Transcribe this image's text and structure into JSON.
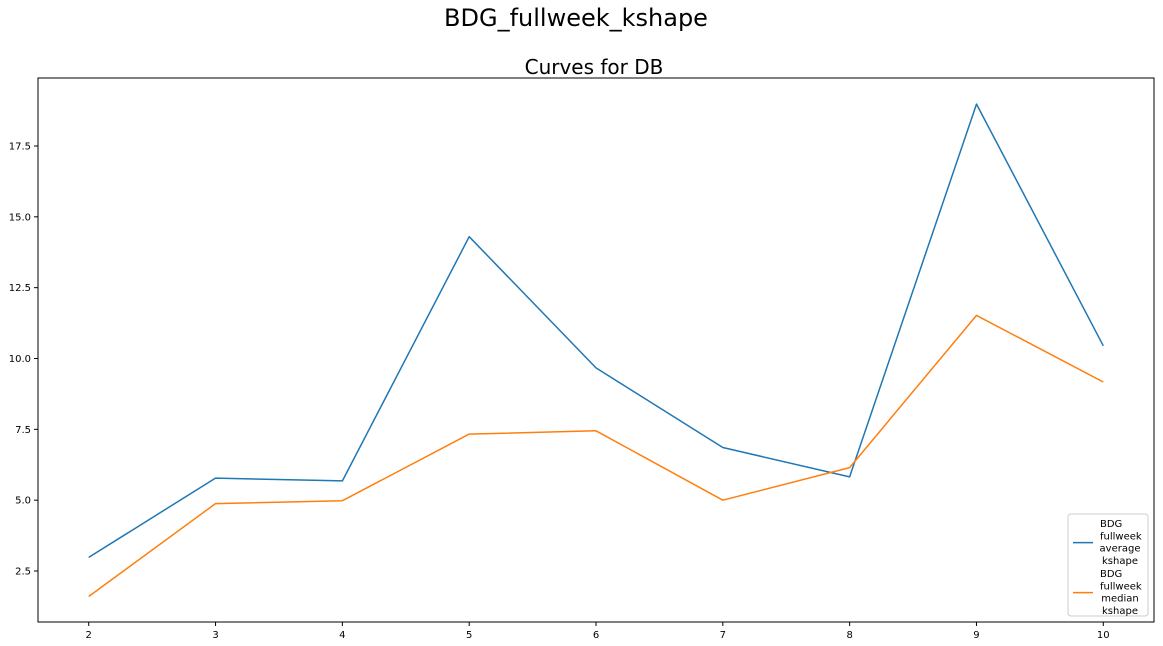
{
  "figure": {
    "suptitle": "BDG_fullweek_kshape"
  },
  "chart_data": {
    "type": "line",
    "title": "Curves for DB",
    "xlabel": "",
    "ylabel": "",
    "x": [
      2,
      3,
      4,
      5,
      6,
      7,
      8,
      9,
      10
    ],
    "xlim": [
      1.6,
      10.4
    ],
    "ylim": [
      0.7,
      19.9
    ],
    "x_ticks": [
      "2",
      "3",
      "4",
      "5",
      "6",
      "7",
      "8",
      "9",
      "10"
    ],
    "y_ticks": [
      "2.5",
      "5.0",
      "7.5",
      "10.0",
      "12.5",
      "15.0",
      "17.5"
    ],
    "y_tick_values": [
      2.5,
      5.0,
      7.5,
      10.0,
      12.5,
      15.0,
      17.5
    ],
    "grid": false,
    "legend_position": "lower-right",
    "series": [
      {
        "name": "BDG\nfullweek\n average\n kshape",
        "color": "#1f77b4",
        "values": [
          2.98,
          5.78,
          5.68,
          14.3,
          9.67,
          6.86,
          5.82,
          18.98,
          10.45
        ]
      },
      {
        "name": "BDG\nfullweek\n median\n kshape",
        "color": "#ff7f0e",
        "values": [
          1.6,
          4.88,
          4.98,
          7.33,
          7.45,
          5.0,
          6.15,
          11.52,
          9.17
        ]
      }
    ]
  }
}
